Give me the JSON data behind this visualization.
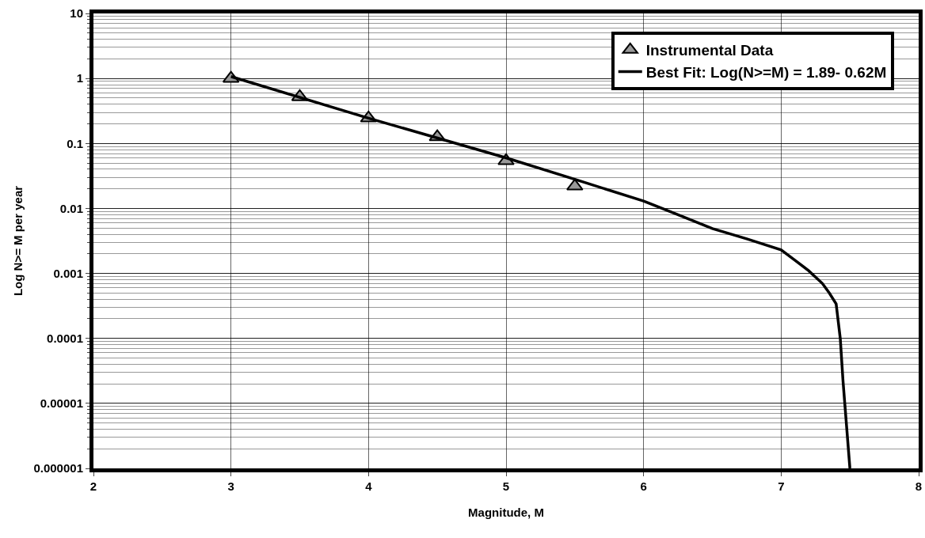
{
  "chart_data": {
    "type": "scatter",
    "xlabel": "Magnitude, M",
    "ylabel": "Log N>= M per year",
    "log": "y",
    "grid": true,
    "legend": "top right",
    "xlim": [
      2,
      8
    ],
    "xticks": [
      2,
      3,
      4,
      5,
      6,
      7,
      8
    ],
    "ylim": [
      1e-06,
      10
    ],
    "yticks": [
      {
        "value": 1e-06,
        "label": "0.000001"
      },
      {
        "value": 1e-05,
        "label": "0.00001"
      },
      0.0001,
      0.001,
      0.01,
      0.1,
      1,
      10
    ],
    "series": [
      {
        "name": "Instrumental Data",
        "marker": "triangle",
        "color": "#999999",
        "x": [
          3,
          3.5,
          4,
          4.5,
          5,
          5.5
        ],
        "values": [
          1.0,
          0.52,
          0.245,
          0.126,
          0.054,
          0.022
        ]
      },
      {
        "name": "Best Fit: Log(N>=M) = 1.89- 0.62M",
        "type": "line",
        "marker": "none",
        "line_style": "solid",
        "color": "#000000",
        "x": [
          3,
          4,
          5,
          5.5,
          6,
          6.25,
          6.5,
          6.75,
          7,
          7.1,
          7.2,
          7.3,
          7.35,
          7.4,
          7.43,
          7.45,
          7.5
        ],
        "values": [
          1.07,
          0.245,
          0.06,
          0.028,
          0.013,
          0.008,
          0.0049,
          0.0034,
          0.0023,
          0.0016,
          0.0011,
          0.0007,
          0.0005,
          0.00034,
          0.0001,
          2.2e-05,
          1e-06
        ]
      }
    ]
  }
}
